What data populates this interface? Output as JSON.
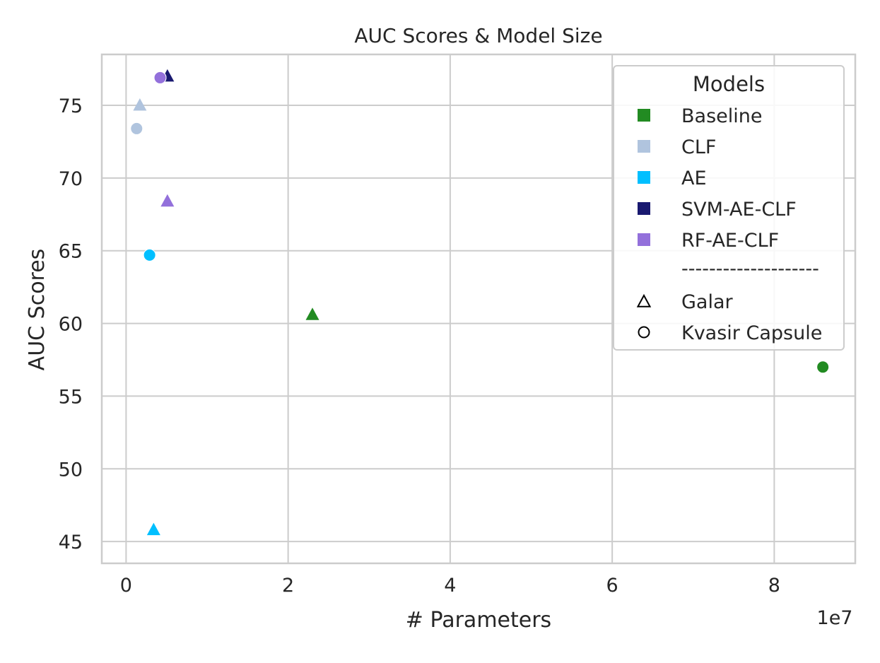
{
  "chart_data": {
    "type": "scatter",
    "title": "AUC Scores & Model Size",
    "xlabel": "# Parameters",
    "ylabel": "AUC Scores",
    "x_offset_label": "1e7",
    "xlim": [
      -0.3,
      9.0
    ],
    "ylim": [
      43.5,
      78.5
    ],
    "x_ticks": [
      0,
      2,
      4,
      6,
      8
    ],
    "y_ticks": [
      45,
      50,
      55,
      60,
      65,
      70,
      75
    ],
    "grid": true,
    "x_scale_note": "x values are in units of 1e7 parameters",
    "series": [
      {
        "name": "Baseline",
        "color": "#228b22",
        "points": [
          {
            "x": 2.3,
            "y": 60.6,
            "marker": "triangle"
          },
          {
            "x": 8.6,
            "y": 57.0,
            "marker": "circle"
          }
        ]
      },
      {
        "name": "CLF",
        "color": "#b0c4de",
        "points": [
          {
            "x": 0.17,
            "y": 75.0,
            "marker": "triangle"
          },
          {
            "x": 0.13,
            "y": 73.4,
            "marker": "circle"
          }
        ]
      },
      {
        "name": "AE",
        "color": "#00bfff",
        "points": [
          {
            "x": 0.34,
            "y": 45.8,
            "marker": "triangle"
          },
          {
            "x": 0.29,
            "y": 64.7,
            "marker": "circle"
          }
        ]
      },
      {
        "name": "SVM-AE-CLF",
        "color": "#191970",
        "points": [
          {
            "x": 0.51,
            "y": 77.0,
            "marker": "triangle"
          },
          {
            "x": 0.42,
            "y": 76.9,
            "marker": "circle"
          }
        ]
      },
      {
        "name": "RF-AE-CLF",
        "color": "#9370db",
        "points": [
          {
            "x": 0.51,
            "y": 68.4,
            "marker": "triangle"
          },
          {
            "x": 0.42,
            "y": 76.9,
            "marker": "circle"
          }
        ]
      }
    ],
    "legend": {
      "title": "Models",
      "placement": "top-right",
      "separator": "--------------------",
      "marker_entries": [
        {
          "label": "Galar",
          "marker": "triangle"
        },
        {
          "label": "Kvasir Capsule",
          "marker": "circle"
        }
      ]
    }
  }
}
